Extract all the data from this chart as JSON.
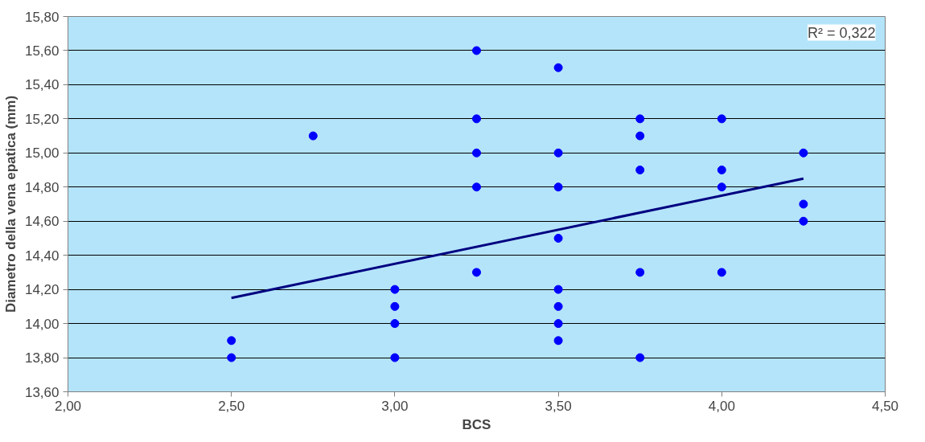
{
  "chart_data": {
    "type": "scatter",
    "xlabel": "BCS",
    "ylabel": "Diametro della vena epatica (mm)",
    "annotations": [
      "R² = 0,322"
    ],
    "xlim": [
      2.0,
      4.5
    ],
    "ylim": [
      13.6,
      15.8
    ],
    "xticks": [
      {
        "value": 2.0,
        "label": "2,00"
      },
      {
        "value": 2.5,
        "label": "2,50"
      },
      {
        "value": 3.0,
        "label": "3,00"
      },
      {
        "value": 3.5,
        "label": "3,50"
      },
      {
        "value": 4.0,
        "label": "4,00"
      },
      {
        "value": 4.5,
        "label": "4,50"
      }
    ],
    "yticks": [
      {
        "value": 13.6,
        "label": "13,60"
      },
      {
        "value": 13.8,
        "label": "13,80"
      },
      {
        "value": 14.0,
        "label": "14,00"
      },
      {
        "value": 14.2,
        "label": "14,20"
      },
      {
        "value": 14.4,
        "label": "14,40"
      },
      {
        "value": 14.6,
        "label": "14,60"
      },
      {
        "value": 14.8,
        "label": "14,80"
      },
      {
        "value": 15.0,
        "label": "15,00"
      },
      {
        "value": 15.2,
        "label": "15,20"
      },
      {
        "value": 15.4,
        "label": "15,40"
      },
      {
        "value": 15.6,
        "label": "15,60"
      },
      {
        "value": 15.8,
        "label": "15,80"
      }
    ],
    "grid": "y",
    "series": [
      {
        "marker": "circle",
        "color": "#0000ff",
        "x": [
          2.5,
          2.5,
          2.75,
          3.0,
          3.0,
          3.0,
          3.0,
          3.25,
          3.25,
          3.25,
          3.25,
          3.25,
          3.5,
          3.5,
          3.5,
          3.5,
          3.5,
          3.5,
          3.5,
          3.5,
          3.75,
          3.75,
          3.75,
          3.75,
          3.75,
          4.0,
          4.0,
          4.0,
          4.0,
          4.25,
          4.25,
          4.25
        ],
        "values": [
          13.9,
          13.8,
          15.1,
          14.2,
          14.1,
          14.0,
          13.8,
          15.6,
          15.2,
          15.0,
          14.8,
          14.3,
          15.5,
          15.0,
          14.8,
          14.5,
          14.2,
          14.1,
          14.0,
          13.9,
          15.2,
          15.1,
          14.9,
          14.3,
          13.8,
          15.2,
          14.9,
          14.8,
          14.3,
          15.0,
          14.7,
          14.6
        ]
      },
      {
        "type": "line",
        "color": "#000080",
        "x": [
          2.5,
          4.25
        ],
        "values": [
          14.15,
          14.85
        ]
      }
    ]
  }
}
